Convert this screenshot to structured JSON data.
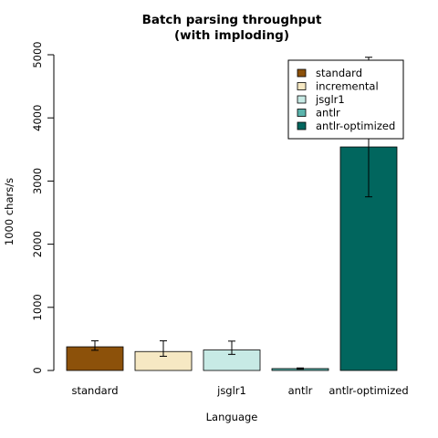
{
  "chart_data": {
    "type": "bar",
    "title": [
      "Batch parsing throughput",
      "(with imploding)"
    ],
    "xlabel": "Language",
    "ylabel": "1000 chars/s",
    "categories": [
      "standard",
      "incremental",
      "jsglr1",
      "antlr",
      "antlr-optimized"
    ],
    "category_labels_shown": [
      "standard",
      "",
      "jsglr1",
      "antlr",
      "antlr-optimized"
    ],
    "values": [
      375,
      300,
      325,
      30,
      3540
    ],
    "error_low": [
      320,
      225,
      255,
      20,
      2750
    ],
    "error_high": [
      470,
      470,
      465,
      40,
      4960
    ],
    "colors": [
      "#8c510a",
      "#f6e8c3",
      "#c7eae5",
      "#5ab4ac",
      "#01665e"
    ],
    "ylim": [
      0,
      5000
    ],
    "yticks": [
      0,
      1000,
      2000,
      3000,
      4000,
      5000
    ],
    "grid": false,
    "legend": {
      "position": "top-right",
      "entries": [
        "standard",
        "incremental",
        "jsglr1",
        "antlr",
        "antlr-optimized"
      ]
    }
  }
}
